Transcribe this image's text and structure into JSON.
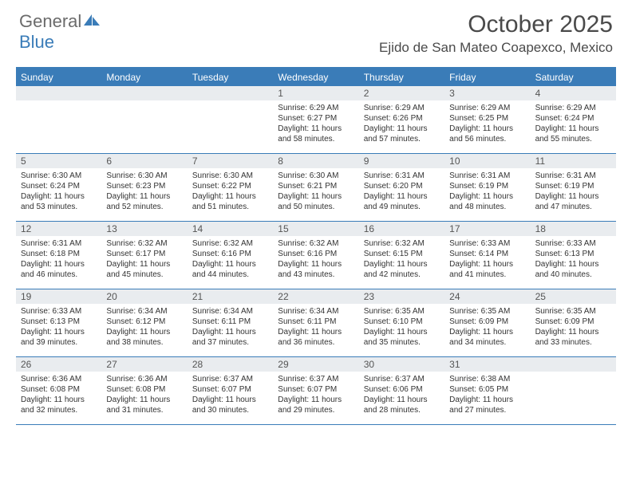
{
  "logo": {
    "text1": "General",
    "text2": "Blue"
  },
  "title": "October 2025",
  "location": "Ejido de San Mateo Coapexco, Mexico",
  "colors": {
    "accent": "#3a7cb8",
    "dayHeaderBg": "#e9ecef",
    "textDark": "#4a4a4a",
    "textGray": "#6b6b6b"
  },
  "dow": [
    "Sunday",
    "Monday",
    "Tuesday",
    "Wednesday",
    "Thursday",
    "Friday",
    "Saturday"
  ],
  "weeks": [
    [
      {
        "n": "",
        "sr": "",
        "ss": "",
        "dl": ""
      },
      {
        "n": "",
        "sr": "",
        "ss": "",
        "dl": ""
      },
      {
        "n": "",
        "sr": "",
        "ss": "",
        "dl": ""
      },
      {
        "n": "1",
        "sr": "Sunrise: 6:29 AM",
        "ss": "Sunset: 6:27 PM",
        "dl": "Daylight: 11 hours and 58 minutes."
      },
      {
        "n": "2",
        "sr": "Sunrise: 6:29 AM",
        "ss": "Sunset: 6:26 PM",
        "dl": "Daylight: 11 hours and 57 minutes."
      },
      {
        "n": "3",
        "sr": "Sunrise: 6:29 AM",
        "ss": "Sunset: 6:25 PM",
        "dl": "Daylight: 11 hours and 56 minutes."
      },
      {
        "n": "4",
        "sr": "Sunrise: 6:29 AM",
        "ss": "Sunset: 6:24 PM",
        "dl": "Daylight: 11 hours and 55 minutes."
      }
    ],
    [
      {
        "n": "5",
        "sr": "Sunrise: 6:30 AM",
        "ss": "Sunset: 6:24 PM",
        "dl": "Daylight: 11 hours and 53 minutes."
      },
      {
        "n": "6",
        "sr": "Sunrise: 6:30 AM",
        "ss": "Sunset: 6:23 PM",
        "dl": "Daylight: 11 hours and 52 minutes."
      },
      {
        "n": "7",
        "sr": "Sunrise: 6:30 AM",
        "ss": "Sunset: 6:22 PM",
        "dl": "Daylight: 11 hours and 51 minutes."
      },
      {
        "n": "8",
        "sr": "Sunrise: 6:30 AM",
        "ss": "Sunset: 6:21 PM",
        "dl": "Daylight: 11 hours and 50 minutes."
      },
      {
        "n": "9",
        "sr": "Sunrise: 6:31 AM",
        "ss": "Sunset: 6:20 PM",
        "dl": "Daylight: 11 hours and 49 minutes."
      },
      {
        "n": "10",
        "sr": "Sunrise: 6:31 AM",
        "ss": "Sunset: 6:19 PM",
        "dl": "Daylight: 11 hours and 48 minutes."
      },
      {
        "n": "11",
        "sr": "Sunrise: 6:31 AM",
        "ss": "Sunset: 6:19 PM",
        "dl": "Daylight: 11 hours and 47 minutes."
      }
    ],
    [
      {
        "n": "12",
        "sr": "Sunrise: 6:31 AM",
        "ss": "Sunset: 6:18 PM",
        "dl": "Daylight: 11 hours and 46 minutes."
      },
      {
        "n": "13",
        "sr": "Sunrise: 6:32 AM",
        "ss": "Sunset: 6:17 PM",
        "dl": "Daylight: 11 hours and 45 minutes."
      },
      {
        "n": "14",
        "sr": "Sunrise: 6:32 AM",
        "ss": "Sunset: 6:16 PM",
        "dl": "Daylight: 11 hours and 44 minutes."
      },
      {
        "n": "15",
        "sr": "Sunrise: 6:32 AM",
        "ss": "Sunset: 6:16 PM",
        "dl": "Daylight: 11 hours and 43 minutes."
      },
      {
        "n": "16",
        "sr": "Sunrise: 6:32 AM",
        "ss": "Sunset: 6:15 PM",
        "dl": "Daylight: 11 hours and 42 minutes."
      },
      {
        "n": "17",
        "sr": "Sunrise: 6:33 AM",
        "ss": "Sunset: 6:14 PM",
        "dl": "Daylight: 11 hours and 41 minutes."
      },
      {
        "n": "18",
        "sr": "Sunrise: 6:33 AM",
        "ss": "Sunset: 6:13 PM",
        "dl": "Daylight: 11 hours and 40 minutes."
      }
    ],
    [
      {
        "n": "19",
        "sr": "Sunrise: 6:33 AM",
        "ss": "Sunset: 6:13 PM",
        "dl": "Daylight: 11 hours and 39 minutes."
      },
      {
        "n": "20",
        "sr": "Sunrise: 6:34 AM",
        "ss": "Sunset: 6:12 PM",
        "dl": "Daylight: 11 hours and 38 minutes."
      },
      {
        "n": "21",
        "sr": "Sunrise: 6:34 AM",
        "ss": "Sunset: 6:11 PM",
        "dl": "Daylight: 11 hours and 37 minutes."
      },
      {
        "n": "22",
        "sr": "Sunrise: 6:34 AM",
        "ss": "Sunset: 6:11 PM",
        "dl": "Daylight: 11 hours and 36 minutes."
      },
      {
        "n": "23",
        "sr": "Sunrise: 6:35 AM",
        "ss": "Sunset: 6:10 PM",
        "dl": "Daylight: 11 hours and 35 minutes."
      },
      {
        "n": "24",
        "sr": "Sunrise: 6:35 AM",
        "ss": "Sunset: 6:09 PM",
        "dl": "Daylight: 11 hours and 34 minutes."
      },
      {
        "n": "25",
        "sr": "Sunrise: 6:35 AM",
        "ss": "Sunset: 6:09 PM",
        "dl": "Daylight: 11 hours and 33 minutes."
      }
    ],
    [
      {
        "n": "26",
        "sr": "Sunrise: 6:36 AM",
        "ss": "Sunset: 6:08 PM",
        "dl": "Daylight: 11 hours and 32 minutes."
      },
      {
        "n": "27",
        "sr": "Sunrise: 6:36 AM",
        "ss": "Sunset: 6:08 PM",
        "dl": "Daylight: 11 hours and 31 minutes."
      },
      {
        "n": "28",
        "sr": "Sunrise: 6:37 AM",
        "ss": "Sunset: 6:07 PM",
        "dl": "Daylight: 11 hours and 30 minutes."
      },
      {
        "n": "29",
        "sr": "Sunrise: 6:37 AM",
        "ss": "Sunset: 6:07 PM",
        "dl": "Daylight: 11 hours and 29 minutes."
      },
      {
        "n": "30",
        "sr": "Sunrise: 6:37 AM",
        "ss": "Sunset: 6:06 PM",
        "dl": "Daylight: 11 hours and 28 minutes."
      },
      {
        "n": "31",
        "sr": "Sunrise: 6:38 AM",
        "ss": "Sunset: 6:05 PM",
        "dl": "Daylight: 11 hours and 27 minutes."
      },
      {
        "n": "",
        "sr": "",
        "ss": "",
        "dl": ""
      }
    ]
  ]
}
